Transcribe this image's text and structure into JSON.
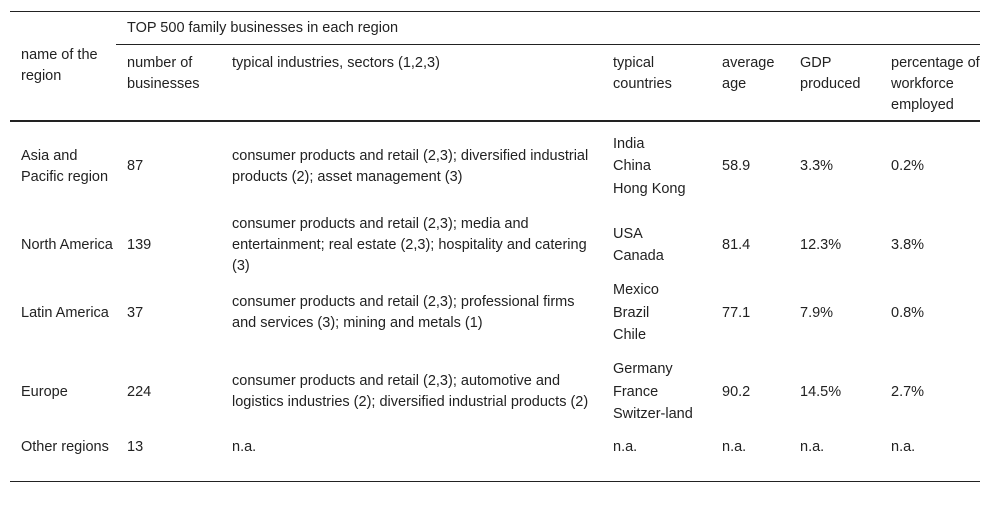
{
  "table": {
    "row_header_label": "name of the region",
    "group_header": "TOP 500 family businesses in each region",
    "columns": [
      "number of businesses",
      "typical industries, sectors (1,2,3)",
      "typical countries",
      "average age",
      "GDP produced",
      "percentage of workforce employed"
    ],
    "rows": [
      {
        "region": "Asia and Pacific region",
        "number": "87",
        "industries": "consumer products and retail (2,3); diversified industrial products (2); asset management (3)",
        "countries": [
          "India",
          "China",
          "Hong Kong"
        ],
        "age": "58.9",
        "gdp": "3.3%",
        "workforce": "0.2%"
      },
      {
        "region": "North America",
        "number": "139",
        "industries": "consumer products and retail (2,3); media and entertainment; real estate (2,3); hospitality and catering (3)",
        "countries": [
          "USA",
          "Canada"
        ],
        "age": "81.4",
        "gdp": "12.3%",
        "workforce": "3.8%"
      },
      {
        "region": "Latin America",
        "number": "37",
        "industries": "consumer products and retail (2,3); professional firms and services (3); mining and metals (1)",
        "countries": [
          "Mexico",
          "Brazil",
          "Chile"
        ],
        "age": "77.1",
        "gdp": "7.9%",
        "workforce": "0.8%"
      },
      {
        "region": "Europe",
        "number": "224",
        "industries": "consumer products and retail (2,3); automotive and logistics industries (2); diversified industrial products (2)",
        "countries": [
          "Germany",
          "France",
          "Switzer-land"
        ],
        "age": "90.2",
        "gdp": "14.5%",
        "workforce": "2.7%"
      },
      {
        "region": "Other regions",
        "number": "13",
        "industries": "n.a.",
        "countries": [
          "n.a."
        ],
        "age": "n.a.",
        "gdp": "n.a.",
        "workforce": "n.a."
      }
    ]
  }
}
